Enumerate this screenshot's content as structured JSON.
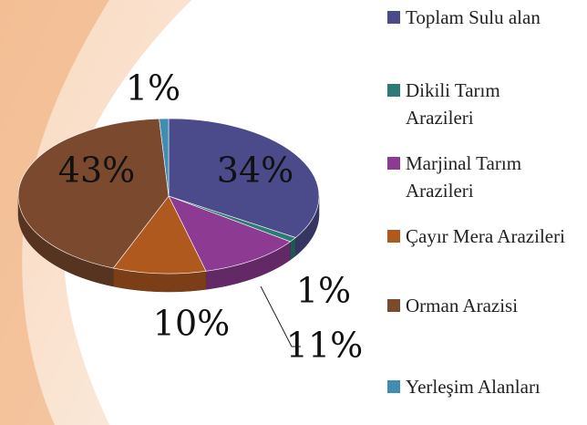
{
  "chart_data": {
    "type": "pie3d",
    "categories": [
      "Toplam Sulu alan",
      "Dikili Tarım Arazileri",
      "Marjinal Tarım Arazileri",
      "Çayır Mera Arazileri",
      "Orman Arazisi",
      "Yerleşim Alanları"
    ],
    "values": [
      34,
      1,
      11,
      10,
      43,
      1
    ],
    "value_labels": [
      "34%",
      "1%",
      "11%",
      "10%",
      "43%",
      "1%"
    ],
    "colors": [
      "#4b4b8c",
      "#2f7a74",
      "#8c3a92",
      "#b0591f",
      "#7b4a2e",
      "#3f8db0"
    ]
  }
}
